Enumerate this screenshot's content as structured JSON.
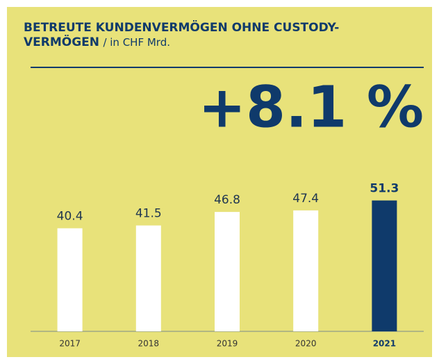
{
  "chart_data": {
    "type": "bar",
    "title": "BETREUTE KUNDENVERMÖGEN OHNE CUSTODY-VERMÖGEN",
    "subtitle": "/ in CHF Mrd.",
    "annotation": "+8.1 %",
    "categories": [
      "2017",
      "2018",
      "2019",
      "2020",
      "2021"
    ],
    "values": [
      40.4,
      41.5,
      46.8,
      47.4,
      51.3
    ],
    "color": "#ffffff",
    "colors": [
      "#ffffff",
      "#ffffff",
      "#ffffff",
      "#ffffff",
      "#0f3a6b"
    ],
    "ylim": [
      0,
      55
    ]
  }
}
